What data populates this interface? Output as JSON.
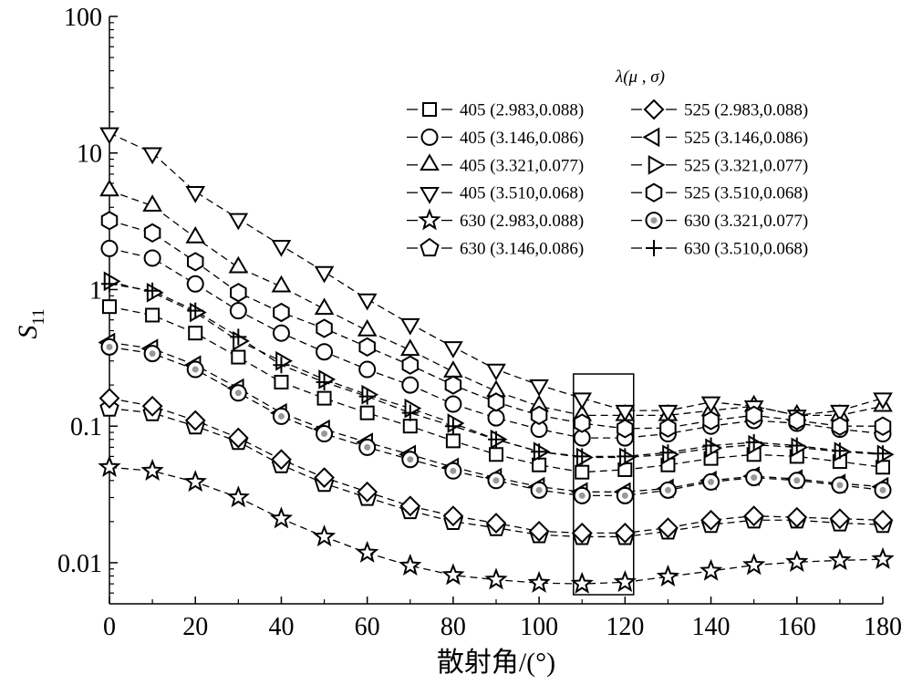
{
  "chart_data": {
    "type": "scatter",
    "xlabel": "散射角/(°)",
    "ylabel_main": "S",
    "ylabel_sub": "11",
    "x_scale": "linear",
    "y_scale": "log",
    "xlim": [
      0,
      180
    ],
    "ylim": [
      0.005,
      100
    ],
    "grid": false,
    "x_ticks": [
      "0",
      "20",
      "40",
      "60",
      "80",
      "100",
      "120",
      "140",
      "160",
      "180"
    ],
    "y_ticks": [
      "100",
      "10",
      "1",
      "0.1",
      "0.01"
    ],
    "legend": {
      "title": "λ(μ , σ)",
      "placement": "top-right",
      "columns": 2
    },
    "x": [
      0,
      10,
      20,
      30,
      40,
      50,
      60,
      70,
      80,
      90,
      100,
      110,
      120,
      130,
      140,
      150,
      160,
      170,
      180
    ],
    "series": [
      {
        "name": "405 (2.983,0.088)",
        "marker": "square",
        "values": [
          0.75,
          0.65,
          0.48,
          0.32,
          0.21,
          0.16,
          0.125,
          0.1,
          0.078,
          0.062,
          0.052,
          0.046,
          0.048,
          0.052,
          0.058,
          0.062,
          0.06,
          0.055,
          0.05
        ]
      },
      {
        "name": "405 (3.146,0.086)",
        "marker": "circle",
        "values": [
          2.0,
          1.7,
          1.1,
          0.7,
          0.48,
          0.35,
          0.26,
          0.2,
          0.145,
          0.115,
          0.095,
          0.082,
          0.082,
          0.088,
          0.1,
          0.11,
          0.105,
          0.095,
          0.088
        ]
      },
      {
        "name": "405 (3.321,0.077)",
        "marker": "triangle-up",
        "values": [
          5.3,
          4.1,
          2.4,
          1.45,
          1.05,
          0.72,
          0.5,
          0.36,
          0.25,
          0.18,
          0.14,
          0.12,
          0.12,
          0.12,
          0.13,
          0.14,
          0.12,
          0.12,
          0.14
        ]
      },
      {
        "name": "405 (3.510,0.068)",
        "marker": "triangle-down",
        "values": [
          14.0,
          10.0,
          5.2,
          3.3,
          2.1,
          1.35,
          0.85,
          0.56,
          0.38,
          0.26,
          0.2,
          0.16,
          0.13,
          0.13,
          0.15,
          0.14,
          0.12,
          0.13,
          0.16
        ]
      },
      {
        "name": "630 (2.983,0.088)",
        "marker": "star",
        "values": [
          0.05,
          0.047,
          0.039,
          0.03,
          0.021,
          0.0155,
          0.0118,
          0.0095,
          0.0081,
          0.0075,
          0.0071,
          0.007,
          0.0072,
          0.0079,
          0.0087,
          0.0096,
          0.0101,
          0.0104,
          0.0106
        ]
      },
      {
        "name": "630 (3.146,0.086)",
        "marker": "pentagon",
        "values": [
          0.135,
          0.125,
          0.1,
          0.077,
          0.052,
          0.038,
          0.03,
          0.024,
          0.02,
          0.018,
          0.016,
          0.0155,
          0.0155,
          0.017,
          0.019,
          0.0205,
          0.0205,
          0.0195,
          0.019
        ]
      },
      {
        "name": "525 (2.983,0.088)",
        "marker": "diamond",
        "values": [
          0.16,
          0.14,
          0.11,
          0.082,
          0.057,
          0.042,
          0.033,
          0.026,
          0.022,
          0.0195,
          0.017,
          0.0165,
          0.0165,
          0.018,
          0.0205,
          0.022,
          0.0215,
          0.021,
          0.0205
        ]
      },
      {
        "name": "525 (3.146,0.086)",
        "marker": "triangle-left",
        "values": [
          0.41,
          0.37,
          0.28,
          0.19,
          0.125,
          0.095,
          0.076,
          0.062,
          0.05,
          0.042,
          0.036,
          0.033,
          0.033,
          0.035,
          0.04,
          0.043,
          0.041,
          0.038,
          0.036
        ]
      },
      {
        "name": "525 (3.321,0.077)",
        "marker": "triangle-right",
        "values": [
          1.15,
          0.95,
          0.68,
          0.42,
          0.3,
          0.22,
          0.17,
          0.135,
          0.105,
          0.08,
          0.065,
          0.059,
          0.059,
          0.062,
          0.069,
          0.073,
          0.07,
          0.065,
          0.062
        ]
      },
      {
        "name": "525 (3.510,0.068)",
        "marker": "hexagon",
        "values": [
          3.2,
          2.6,
          1.6,
          0.95,
          0.68,
          0.52,
          0.38,
          0.28,
          0.2,
          0.15,
          0.12,
          0.105,
          0.096,
          0.097,
          0.11,
          0.12,
          0.11,
          0.1,
          0.1
        ]
      },
      {
        "name": "630 (3.321,0.077)",
        "marker": "circle-dot",
        "values": [
          0.38,
          0.34,
          0.26,
          0.175,
          0.118,
          0.088,
          0.07,
          0.057,
          0.047,
          0.04,
          0.034,
          0.031,
          0.031,
          0.034,
          0.039,
          0.042,
          0.04,
          0.037,
          0.034
        ]
      },
      {
        "name": "630 (3.510,0.068)",
        "marker": "plus",
        "values": [
          1.1,
          0.98,
          0.7,
          0.45,
          0.28,
          0.21,
          0.165,
          0.125,
          0.1,
          0.08,
          0.065,
          0.06,
          0.06,
          0.064,
          0.072,
          0.076,
          0.072,
          0.066,
          0.063
        ]
      }
    ],
    "annotation_box_x": [
      108,
      122
    ]
  }
}
